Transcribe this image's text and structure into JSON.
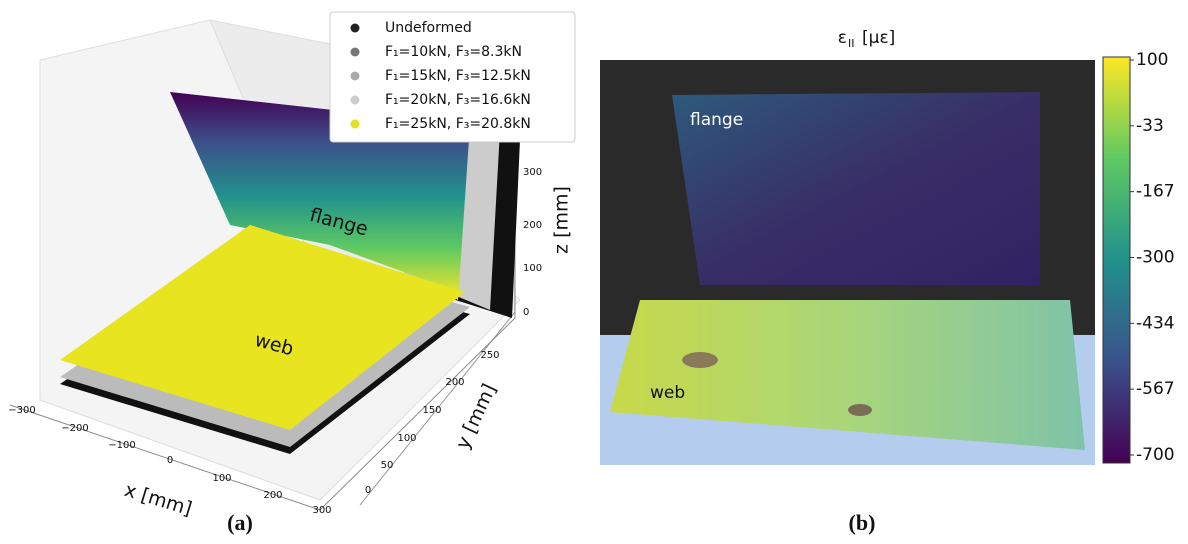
{
  "panel_a": {
    "caption": "(a)",
    "legend": [
      "Undeformed",
      "F₁=10kN, F₃=8.3kN",
      "F₁=15kN, F₃=12.5kN",
      "F₁=20kN, F₃=16.6kN",
      "F₁=25kN, F₃=20.8kN"
    ],
    "x_label": "x [mm]",
    "y_label": "y [mm]",
    "z_label": "z [mm]",
    "x_ticks": [
      "−300",
      "−200",
      "−100",
      "0",
      "100",
      "200",
      "300"
    ],
    "y_ticks": [
      "0",
      "50",
      "100",
      "150",
      "200",
      "250"
    ],
    "z_ticks": [
      "0",
      "100",
      "200",
      "300"
    ],
    "flange_label": "flange",
    "web_label": "web"
  },
  "panel_b": {
    "caption": "(b)",
    "title_symbol": "ε",
    "title_subscript": "II",
    "title_unit": "[με]",
    "colorbar_ticks": [
      "100",
      "-33",
      "-167",
      "-300",
      "-434",
      "-567",
      "-700"
    ],
    "flange_label": "flange",
    "web_label": "web"
  }
}
